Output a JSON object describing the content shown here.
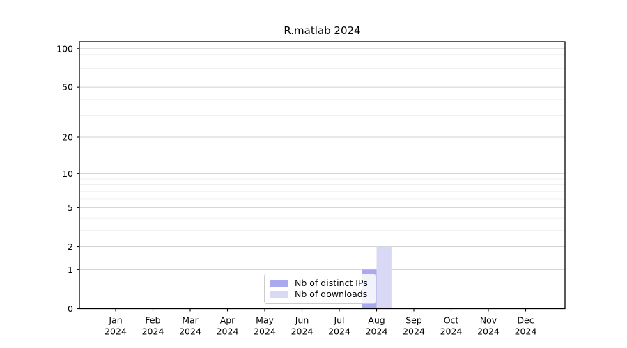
{
  "chart_data": {
    "type": "bar",
    "title": "R.matlab 2024",
    "categories": [
      "Jan 2024",
      "Feb 2024",
      "Mar 2024",
      "Apr 2024",
      "May 2024",
      "Jun 2024",
      "Jul 2024",
      "Aug 2024",
      "Sep 2024",
      "Oct 2024",
      "Nov 2024",
      "Dec 2024"
    ],
    "x_tick_months": [
      "Jan",
      "Feb",
      "Mar",
      "Apr",
      "May",
      "Jun",
      "Jul",
      "Aug",
      "Sep",
      "Oct",
      "Nov",
      "Dec"
    ],
    "x_tick_year": "2024",
    "series": [
      {
        "name": "Nb of distinct IPs",
        "color": "#a9a9ef",
        "values": [
          0,
          0,
          0,
          0,
          0,
          0,
          0,
          1,
          0,
          0,
          0,
          0
        ]
      },
      {
        "name": "Nb of downloads",
        "color": "#d9d9f6",
        "values": [
          0,
          0,
          0,
          0,
          0,
          0,
          0,
          2,
          0,
          0,
          0,
          0
        ]
      }
    ],
    "xlabel": "",
    "ylabel": "",
    "y_scale": "log1p",
    "y_ticks": [
      0,
      1,
      2,
      5,
      10,
      20,
      50,
      100
    ],
    "y_minor_ticks": [
      3,
      4,
      6,
      7,
      8,
      9,
      30,
      40,
      60,
      70,
      80,
      90
    ],
    "ylim": [
      0,
      113
    ],
    "grid": "on",
    "legend_position": "lower center"
  }
}
